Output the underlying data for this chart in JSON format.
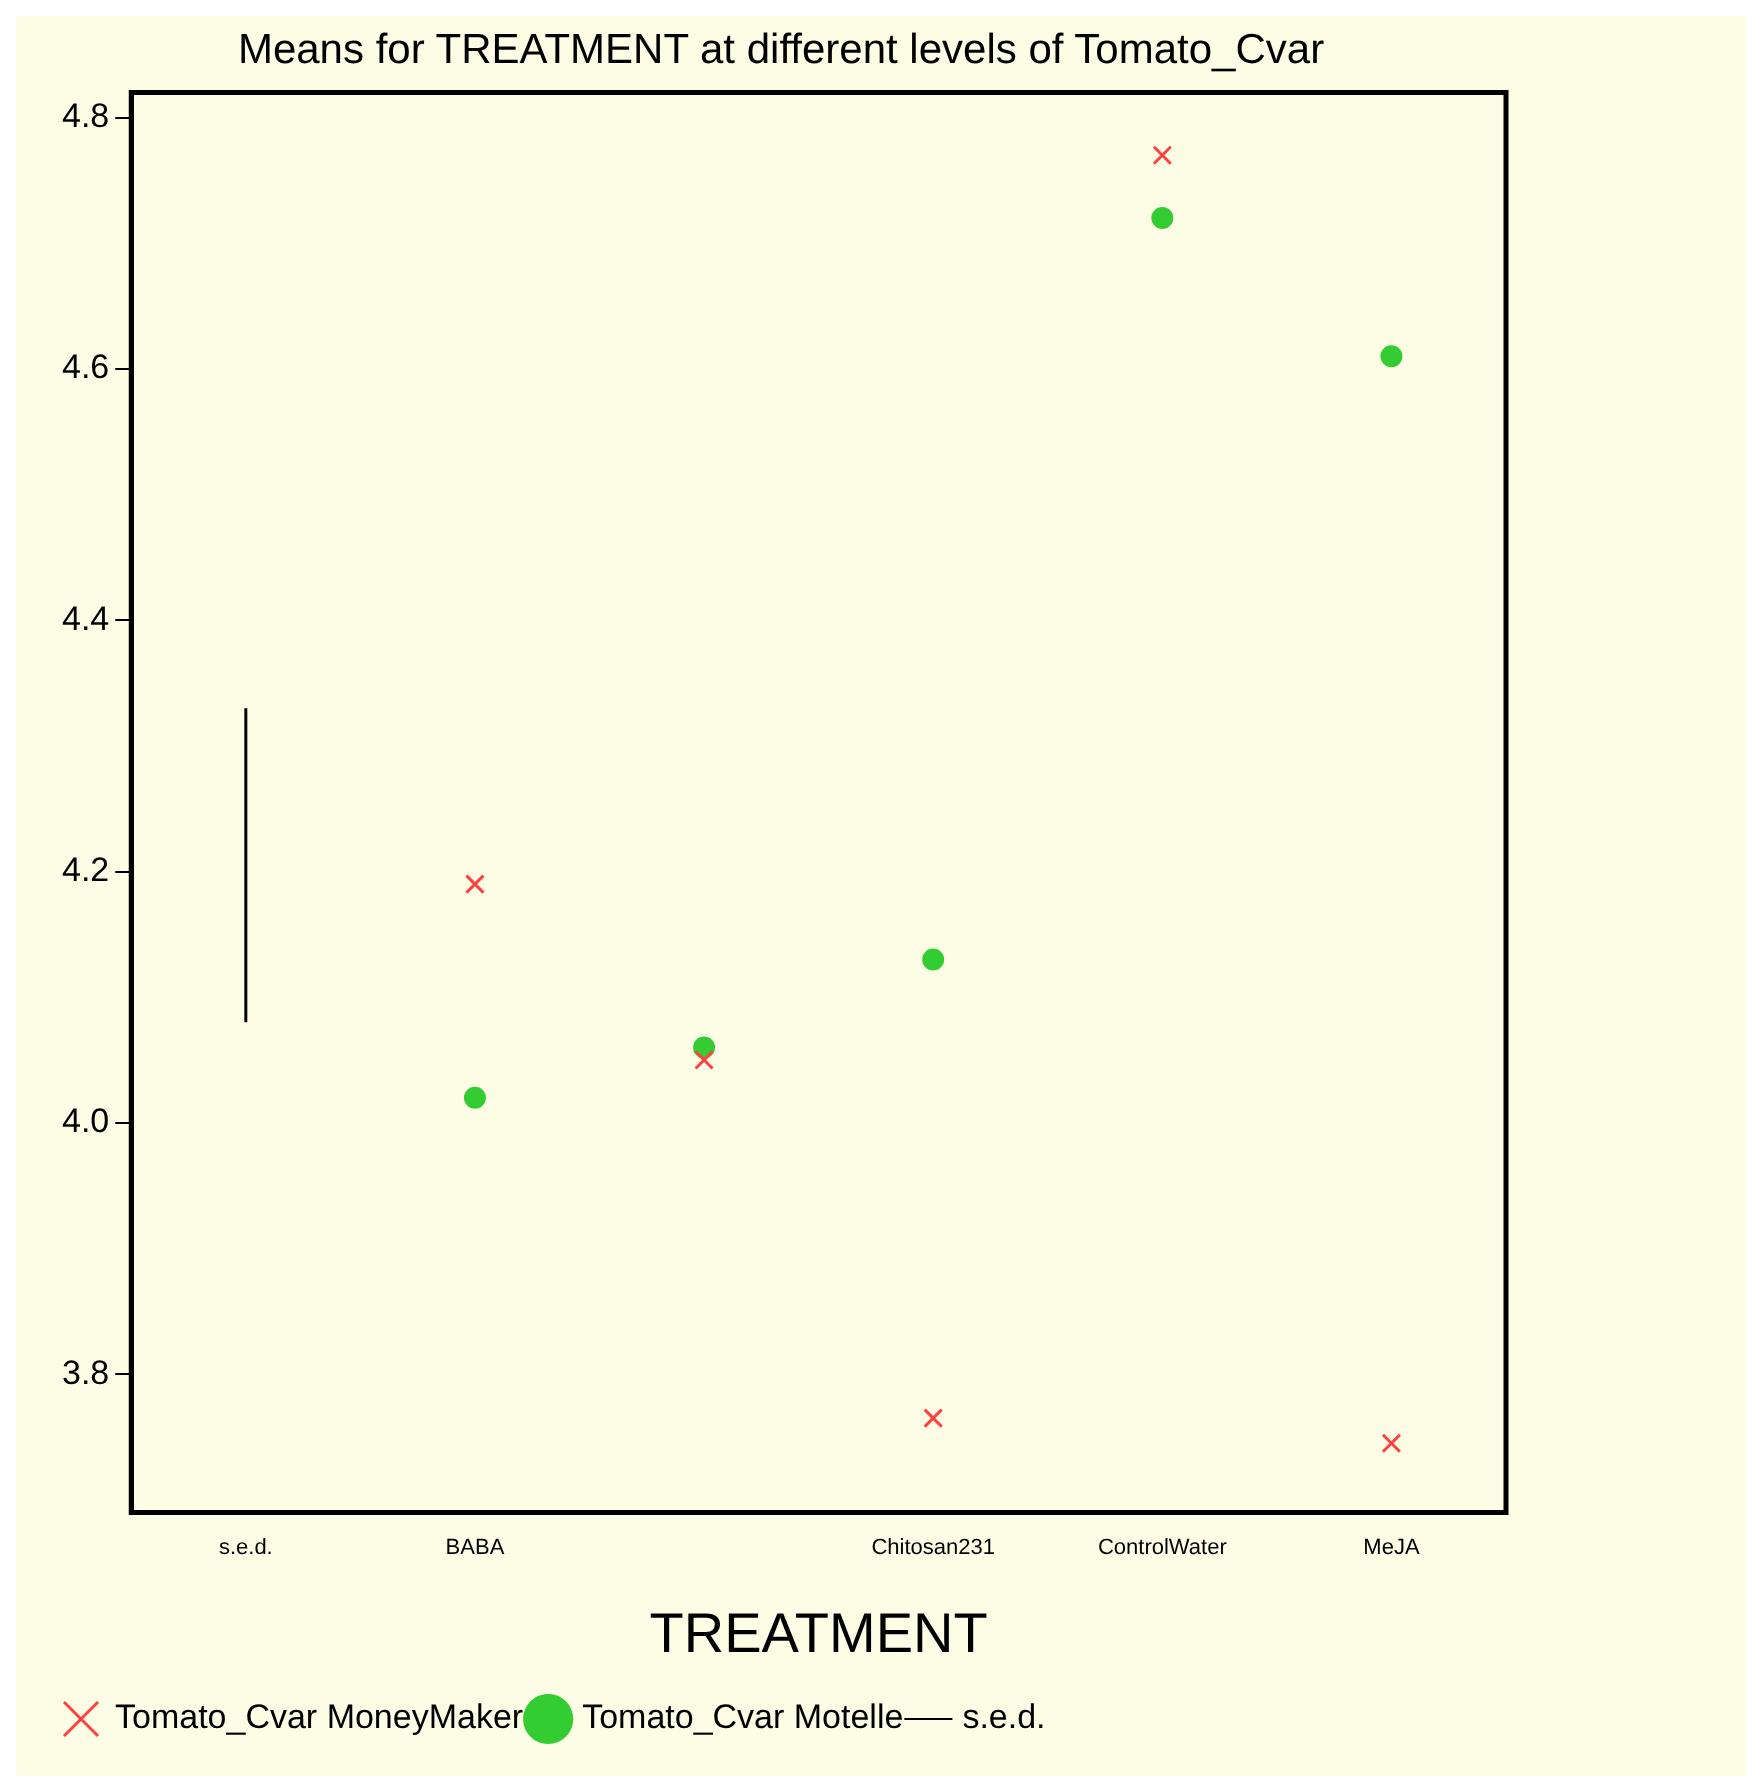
{
  "chart_data": {
    "type": "scatter",
    "title": "Means for TREATMENT at different levels of Tomato_Cvar",
    "xlabel": "TREATMENT",
    "categories": [
      "s.e.d.",
      "BABA",
      null,
      "Chitosan231",
      "ControlWater",
      "MeJA"
    ],
    "series": [
      {
        "name": "Tomato_Cvar MoneyMaker",
        "color": "#ff4040",
        "marker": "cross",
        "values": [
          null,
          4.19,
          4.05,
          3.765,
          4.77,
          3.745
        ]
      },
      {
        "name": "Tomato_Cvar Motelle",
        "color": "#33cc33",
        "marker": "circle",
        "values": [
          null,
          4.02,
          4.06,
          4.13,
          4.72,
          4.61
        ]
      },
      {
        "name": "s.e.d.",
        "type": "line",
        "color": "#000000",
        "marker": "none",
        "x": [
          "s.e.d.",
          "s.e.d."
        ],
        "values": [
          4.08,
          4.33
        ]
      }
    ],
    "ylim": [
      3.69,
      4.82
    ],
    "yticks": [
      {
        "value": 3.8,
        "label": "3.8"
      },
      {
        "value": 4.0,
        "label": "4.0"
      },
      {
        "value": 4.2,
        "label": "4.2"
      },
      {
        "value": 4.4,
        "label": "4.4"
      },
      {
        "value": 4.6,
        "label": "4.6"
      },
      {
        "value": 4.8,
        "label": "4.8"
      }
    ],
    "grid": false,
    "legend": "bottom"
  }
}
